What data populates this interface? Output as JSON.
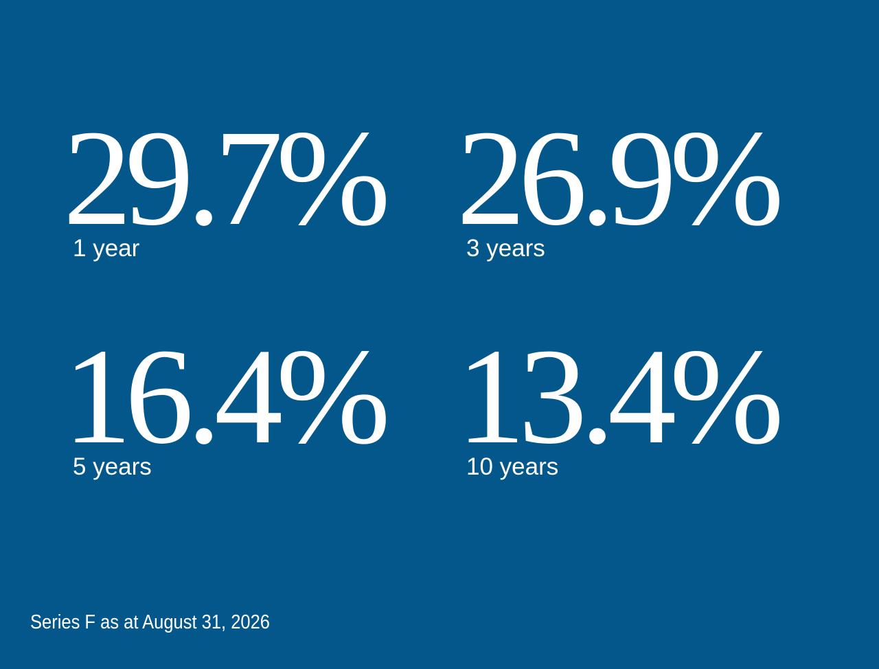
{
  "stats": [
    {
      "value": "29.7%",
      "label": "1 year"
    },
    {
      "value": "26.9%",
      "label": "3 years"
    },
    {
      "value": "16.4%",
      "label": "5 years"
    },
    {
      "value": "13.4%",
      "label": "10 years"
    }
  ],
  "footnote": "Series F as at August 31, 2026"
}
